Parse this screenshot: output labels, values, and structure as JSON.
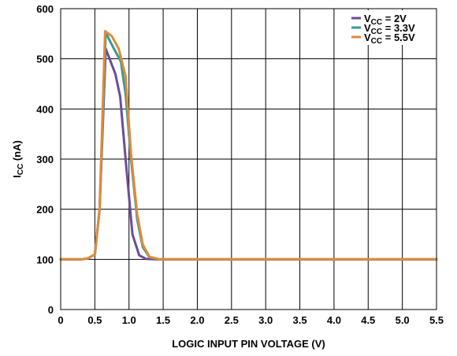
{
  "chart_data": {
    "type": "line",
    "title": "",
    "xlabel": "LOGIC INPUT PIN VOLTAGE (V)",
    "ylabel": {
      "main": "I",
      "sub": "CC",
      "rest": " (nA)"
    },
    "xlim": [
      0,
      5.5
    ],
    "ylim": [
      0,
      600
    ],
    "xticks": [
      0,
      0.5,
      1.0,
      1.5,
      2.0,
      2.5,
      3.0,
      3.5,
      4.0,
      4.5,
      5.0,
      5.5
    ],
    "xtick_labels": [
      "0",
      "0.5",
      "1.0",
      "1.5",
      "2.0",
      "2.5",
      "3.0",
      "3.5",
      "4.0",
      "4.5",
      "5.0",
      "5.5"
    ],
    "yticks": [
      0,
      100,
      200,
      300,
      400,
      500,
      600
    ],
    "ytick_labels": [
      "0",
      "100",
      "200",
      "300",
      "400",
      "500",
      "600"
    ],
    "grid": true,
    "legend_position": "top-right",
    "series": [
      {
        "name": {
          "main": "V",
          "sub": "CC",
          "rest": " = 2V"
        },
        "color": "#6b4c9a",
        "points": [
          [
            0,
            100
          ],
          [
            0.3,
            100
          ],
          [
            0.4,
            102
          ],
          [
            0.5,
            110
          ],
          [
            0.57,
            200
          ],
          [
            0.66,
            520
          ],
          [
            0.8,
            470
          ],
          [
            0.87,
            425
          ],
          [
            0.95,
            300
          ],
          [
            1.05,
            150
          ],
          [
            1.15,
            108
          ],
          [
            1.25,
            101
          ],
          [
            1.4,
            100
          ],
          [
            5.5,
            100
          ]
        ]
      },
      {
        "name": {
          "main": "V",
          "sub": "CC",
          "rest": " = 3.3V"
        },
        "color": "#3a9a9a",
        "points": [
          [
            0,
            100
          ],
          [
            0.3,
            100
          ],
          [
            0.4,
            102
          ],
          [
            0.5,
            110
          ],
          [
            0.57,
            200
          ],
          [
            0.66,
            552
          ],
          [
            0.78,
            520
          ],
          [
            0.88,
            495
          ],
          [
            0.95,
            430
          ],
          [
            1.03,
            300
          ],
          [
            1.12,
            180
          ],
          [
            1.2,
            125
          ],
          [
            1.3,
            104
          ],
          [
            1.45,
            100
          ],
          [
            5.5,
            100
          ]
        ]
      },
      {
        "name": {
          "main": "V",
          "sub": "CC",
          "rest": " = 5.5V"
        },
        "color": "#e08a3a",
        "points": [
          [
            0,
            100
          ],
          [
            0.3,
            100
          ],
          [
            0.4,
            102
          ],
          [
            0.5,
            110
          ],
          [
            0.57,
            200
          ],
          [
            0.65,
            555
          ],
          [
            0.75,
            545
          ],
          [
            0.85,
            520
          ],
          [
            0.95,
            465
          ],
          [
            1.03,
            310
          ],
          [
            1.12,
            190
          ],
          [
            1.2,
            130
          ],
          [
            1.3,
            105
          ],
          [
            1.45,
            100
          ],
          [
            5.5,
            100
          ]
        ]
      }
    ]
  }
}
